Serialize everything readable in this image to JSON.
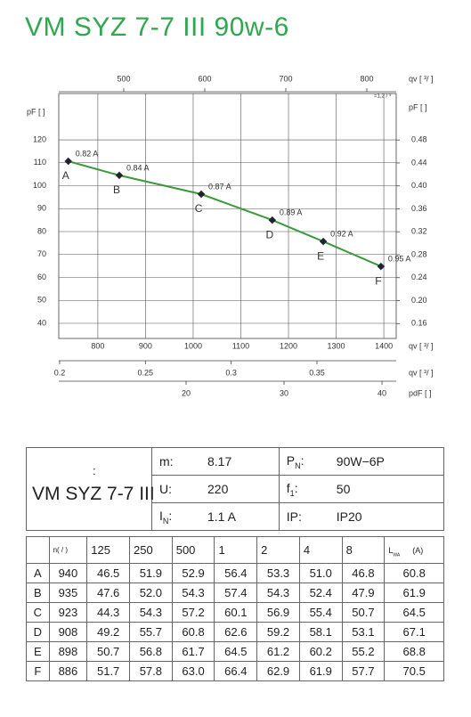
{
  "title": "VM SYZ 7-7 III 90w-6",
  "chart_data": {
    "type": "line",
    "x_label": "qv [  ³/   ]",
    "y_label": "pF [    ]",
    "y2_label": "pF [    ]",
    "xlim": [
      718,
      1426
    ],
    "xticks": [
      800,
      900,
      1000,
      1100,
      1200,
      1300,
      1400
    ],
    "ylim": [
      33.4,
      140.2
    ],
    "yticks": [
      40,
      50,
      60,
      70,
      80,
      90,
      100,
      110,
      120
    ],
    "y2lim": [
      0.134,
      0.561
    ],
    "y2ticks": [
      0.16,
      {
        "value": 0.2,
        "label": "0.20"
      },
      0.24,
      0.28,
      0.32,
      0.36,
      {
        "value": 0.4,
        "label": "0.40"
      },
      0.44,
      0.48
    ],
    "grid": true,
    "secondary_axes": [
      {
        "position": "top",
        "label": "qv [   ³/   ]",
        "note": "=1,2  /  ³",
        "lim": [
          419.8,
          836.3
        ],
        "ticks": [
          500,
          600,
          700,
          800
        ]
      },
      {
        "position": "bottom",
        "label": "qv [  ³/   ]",
        "lim": [
          0.1995,
          0.3962
        ],
        "ticks": [
          0.2,
          0.25,
          0.3,
          0.35
        ]
      },
      {
        "position": "bottom",
        "label": "pdF [    ]",
        "lim": [
          7.0,
          41.45
        ],
        "ticks": [
          20,
          30,
          40
        ]
      }
    ],
    "x": [
      738,
      845,
      1017,
      1166,
      1273,
      1394
    ],
    "series": [
      {
        "color": "#3a9a3a",
        "values": [
          110.7,
          104.5,
          96.3,
          85.0,
          75.7,
          64.8
        ],
        "point_labels": [
          "A",
          "B",
          "C",
          "D",
          "E",
          "F"
        ],
        "annotations": [
          "0.82 A",
          "0.84 A",
          "0.87 A",
          "0.89 A",
          "0.92 A",
          "0.95 A"
        ]
      }
    ]
  },
  "spec": {
    "colon": ":",
    "model": "VM SYZ 7-7 III",
    "rows": [
      [
        {
          "key": "m:",
          "value": "8.17"
        },
        {
          "key": "P",
          "sub": "N",
          "colon": ":",
          "value": "90W−6P"
        }
      ],
      [
        {
          "key": "U:",
          "value": "220"
        },
        {
          "key": "f",
          "sub": "1",
          "colon": ":",
          "value": "50"
        }
      ],
      [
        {
          "key": "I",
          "sub": "N",
          "colon": ":",
          "value": "1.1  A"
        },
        {
          "key": "IP:",
          "value": "IP20"
        }
      ]
    ]
  },
  "table": {
    "header": [
      "n(  /   )",
      "125",
      "250",
      "500",
      "1",
      "2",
      "4",
      "8",
      "L",
      "WA",
      "(A)"
    ],
    "rows": [
      [
        "A",
        "940",
        "46.5",
        "51.9",
        "52.9",
        "56.4",
        "53.3",
        "51.0",
        "46.8",
        "60.8"
      ],
      [
        "B",
        "935",
        "47.6",
        "52.0",
        "54.3",
        "57.4",
        "54.3",
        "52.4",
        "47.9",
        "61.9"
      ],
      [
        "C",
        "923",
        "44.3",
        "54.3",
        "57.2",
        "60.1",
        "56.9",
        "55.4",
        "50.7",
        "64.5"
      ],
      [
        "D",
        "908",
        "49.2",
        "55.7",
        "60.8",
        "62.6",
        "59.2",
        "58.1",
        "53.1",
        "67.1"
      ],
      [
        "E",
        "898",
        "50.7",
        "56.8",
        "61.7",
        "64.5",
        "61.2",
        "60.2",
        "55.2",
        "68.8"
      ],
      [
        "F",
        "886",
        "51.7",
        "57.8",
        "63.0",
        "66.4",
        "62.9",
        "61.9",
        "57.7",
        "70.5"
      ]
    ]
  }
}
